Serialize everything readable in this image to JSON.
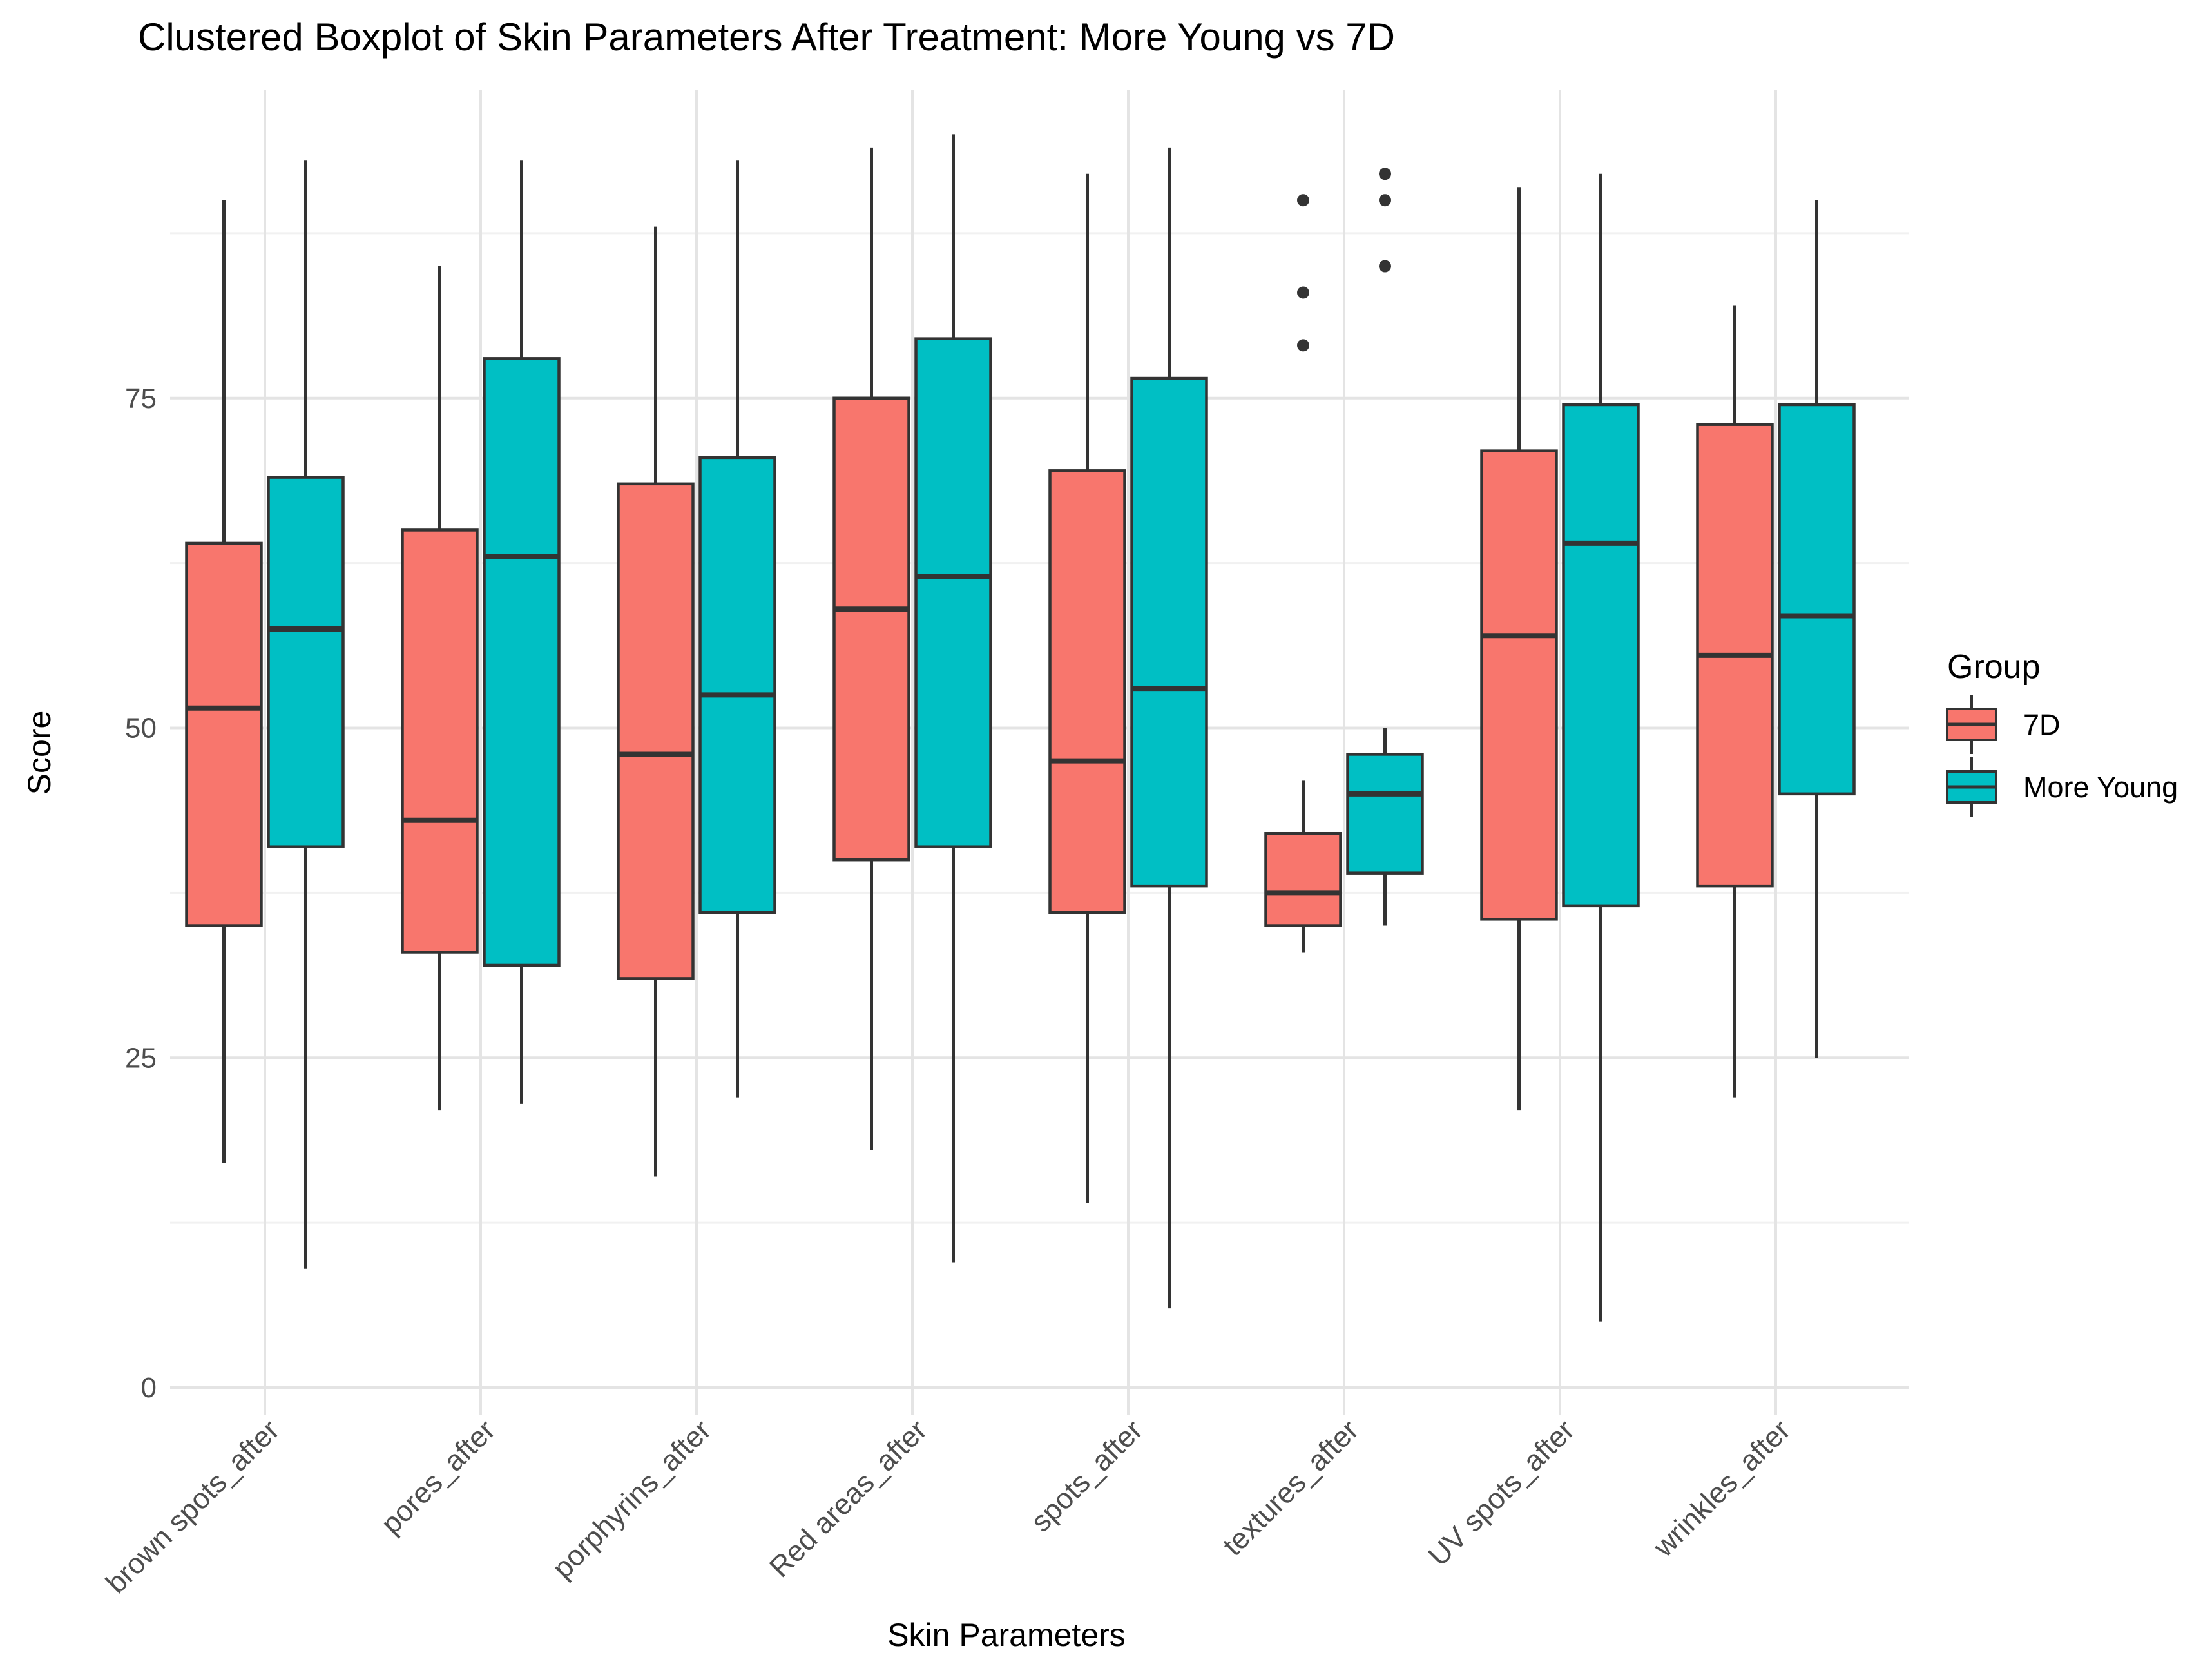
{
  "chart_data": {
    "type": "boxplot",
    "title": "Clustered Boxplot of Skin Parameters After Treatment: More Young vs 7D",
    "xlabel": "Skin Parameters",
    "ylabel": "Score",
    "y_ticks": [
      0,
      25,
      50,
      75
    ],
    "y_minor_ticks": [
      12.5,
      37.5,
      62.5,
      87.5
    ],
    "ylim": [
      -2,
      98
    ],
    "grid": true,
    "legend": {
      "title": "Group",
      "position": "right",
      "entries": [
        {
          "label": "7D",
          "color": "#F8766D"
        },
        {
          "label": "More Young",
          "color": "#00BFC4"
        }
      ]
    },
    "colors": {
      "stroke": "#333333",
      "grid_major": "#E4E4E4",
      "grid_minor": "#F1F1F1",
      "axis_text": "#4D4D4D",
      "title_text": "#000000"
    },
    "categories": [
      "brown spots_after",
      "pores_after",
      "porphyrins_after",
      "Red areas_after",
      "spots_after",
      "textures_after",
      "UV spots_after",
      "wrinkles_after"
    ],
    "series": [
      {
        "name": "7D",
        "color": "#F8766D",
        "boxes": [
          {
            "whisker_low": 17,
            "q1": 35,
            "median": 51.5,
            "q3": 64,
            "whisker_high": 90,
            "outliers": []
          },
          {
            "whisker_low": 21,
            "q1": 33,
            "median": 43,
            "q3": 65,
            "whisker_high": 85,
            "outliers": []
          },
          {
            "whisker_low": 16,
            "q1": 31,
            "median": 48,
            "q3": 68.5,
            "whisker_high": 88,
            "outliers": []
          },
          {
            "whisker_low": 18,
            "q1": 40,
            "median": 59,
            "q3": 75,
            "whisker_high": 94,
            "outliers": []
          },
          {
            "whisker_low": 14,
            "q1": 36,
            "median": 47.5,
            "q3": 69.5,
            "whisker_high": 92,
            "outliers": []
          },
          {
            "whisker_low": 33,
            "q1": 35,
            "median": 37.5,
            "q3": 42,
            "whisker_high": 46,
            "outliers": [
              79,
              83,
              90
            ]
          },
          {
            "whisker_low": 21,
            "q1": 35.5,
            "median": 57,
            "q3": 71,
            "whisker_high": 91,
            "outliers": []
          },
          {
            "whisker_low": 22,
            "q1": 38,
            "median": 55.5,
            "q3": 73,
            "whisker_high": 82,
            "outliers": []
          }
        ]
      },
      {
        "name": "More Young",
        "color": "#00BFC4",
        "boxes": [
          {
            "whisker_low": 9,
            "q1": 41,
            "median": 57.5,
            "q3": 69,
            "whisker_high": 93,
            "outliers": []
          },
          {
            "whisker_low": 21.5,
            "q1": 32,
            "median": 63,
            "q3": 78,
            "whisker_high": 93,
            "outliers": []
          },
          {
            "whisker_low": 22,
            "q1": 36,
            "median": 52.5,
            "q3": 70.5,
            "whisker_high": 93,
            "outliers": []
          },
          {
            "whisker_low": 9.5,
            "q1": 41,
            "median": 61.5,
            "q3": 79.5,
            "whisker_high": 95,
            "outliers": []
          },
          {
            "whisker_low": 6,
            "q1": 38,
            "median": 53,
            "q3": 76.5,
            "whisker_high": 94,
            "outliers": []
          },
          {
            "whisker_low": 35,
            "q1": 39,
            "median": 45,
            "q3": 48,
            "whisker_high": 50,
            "outliers": [
              85,
              90,
              92
            ]
          },
          {
            "whisker_low": 5,
            "q1": 36.5,
            "median": 64,
            "q3": 74.5,
            "whisker_high": 92,
            "outliers": []
          },
          {
            "whisker_low": 25,
            "q1": 45,
            "median": 58.5,
            "q3": 74.5,
            "whisker_high": 90,
            "outliers": []
          }
        ]
      }
    ]
  }
}
